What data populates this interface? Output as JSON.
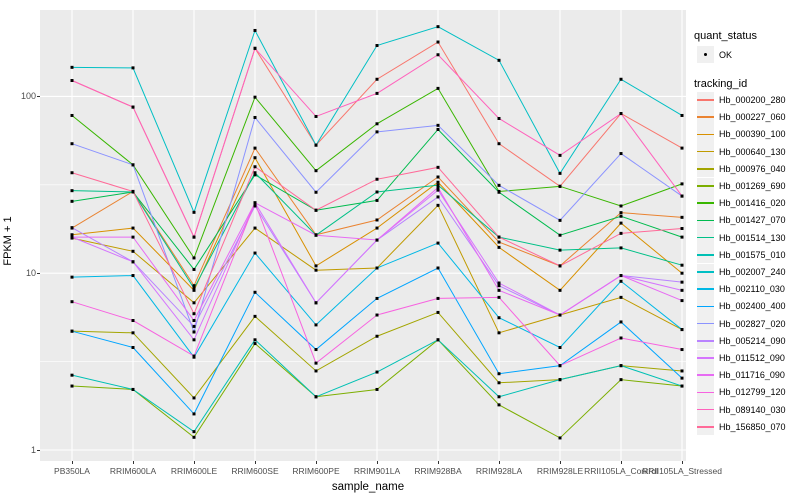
{
  "chart_data": {
    "type": "line",
    "xlabel": "sample_name",
    "ylabel": "FPKM + 1",
    "yscale": "log10",
    "ylim": [
      0.87,
      310
    ],
    "yticks": [
      {
        "value": 1,
        "label": "1"
      },
      {
        "value": 10,
        "label": "10"
      },
      {
        "value": 100,
        "label": "100"
      }
    ],
    "yminor": [
      3.1623,
      31.623
    ],
    "grid": true,
    "panel_bg": "#EBEBEB",
    "grid_color": "#FFFFFF",
    "point_color": "#000000",
    "legend_position": "right",
    "categories": [
      "PB350LA",
      "RRIM600LA",
      "RRIM600LE",
      "RRIM600SE",
      "RRIM600PE",
      "RRIM901LA",
      "RRIM928BA",
      "RRIM928LA",
      "RRIM928LE",
      "RRII105LA_Control",
      "RRII105LA_Stressed"
    ],
    "legend": {
      "quant_status_title": "quant_status",
      "quant_status_items": [
        {
          "label": "OK",
          "marker": "point"
        }
      ],
      "tracking_id_title": "tracking_id"
    },
    "series": [
      {
        "name": "Hb_000200_280",
        "color": "#F8766D",
        "values": [
          123,
          87,
          16,
          187,
          53,
          125,
          203,
          54,
          31,
          80,
          51
        ]
      },
      {
        "name": "Hb_000227_060",
        "color": "#EA8331",
        "values": [
          18,
          29,
          8.5,
          51,
          16.5,
          20,
          35,
          15,
          11,
          22,
          20.7
        ]
      },
      {
        "name": "Hb_000390_100",
        "color": "#D89000",
        "values": [
          16.5,
          18,
          8.0,
          45,
          11,
          18,
          32.7,
          14,
          8.0,
          19.2,
          10
        ]
      },
      {
        "name": "Hb_000640_130",
        "color": "#C09B00",
        "values": [
          15.8,
          13.3,
          6.8,
          18,
          10.4,
          10.7,
          24.2,
          4.6,
          5.8,
          7.3,
          4.8
        ]
      },
      {
        "name": "Hb_000976_040",
        "color": "#A3A500",
        "values": [
          4.7,
          4.6,
          1.97,
          5.7,
          2.8,
          4.4,
          6.0,
          2.4,
          2.5,
          3.0,
          2.8
        ]
      },
      {
        "name": "Hb_001269_690",
        "color": "#7CAE00",
        "values": [
          2.3,
          2.2,
          1.18,
          4.0,
          2.0,
          2.2,
          4.2,
          1.8,
          1.17,
          2.5,
          2.3
        ]
      },
      {
        "name": "Hb_001416_020",
        "color": "#39B600",
        "values": [
          78,
          41,
          12.2,
          99,
          38,
          70,
          111,
          29,
          31,
          24,
          32
        ]
      },
      {
        "name": "Hb_001427_070",
        "color": "#00BB4E",
        "values": [
          25.5,
          28.8,
          10.5,
          36,
          22.7,
          25.8,
          65,
          28.7,
          16.4,
          21,
          16
        ]
      },
      {
        "name": "Hb_001514_130",
        "color": "#00C087",
        "values": [
          29.3,
          28.8,
          8.2,
          37,
          16.4,
          28.8,
          31.5,
          16,
          13.5,
          13.9,
          11.1
        ]
      },
      {
        "name": "Hb_001575_010",
        "color": "#00C0B4",
        "values": [
          2.65,
          2.2,
          1.27,
          4.2,
          2.0,
          2.76,
          4.2,
          2.0,
          2.5,
          3.0,
          2.3
        ]
      },
      {
        "name": "Hb_002007_240",
        "color": "#00BFC4",
        "values": [
          146,
          145,
          22.1,
          236,
          53,
          194,
          248,
          160,
          36.7,
          125,
          78
        ]
      },
      {
        "name": "Hb_002110_030",
        "color": "#00B8E5",
        "values": [
          9.5,
          9.7,
          3.35,
          13,
          5.1,
          10.7,
          14.8,
          5.6,
          3.8,
          9.0,
          4.8
        ]
      },
      {
        "name": "Hb_002400_400",
        "color": "#00A5FF",
        "values": [
          4.7,
          3.8,
          1.6,
          7.8,
          3.7,
          7.2,
          10.7,
          2.7,
          3.0,
          5.3,
          2.55
        ]
      },
      {
        "name": "Hb_002827_020",
        "color": "#8B93FF",
        "values": [
          54,
          41,
          4.65,
          76,
          28.7,
          63,
          68.6,
          31.4,
          19.9,
          47.5,
          27.3
        ]
      },
      {
        "name": "Hb_005214_090",
        "color": "#B983FF",
        "values": [
          18.1,
          11.6,
          5.0,
          24,
          6.8,
          15.4,
          27,
          8.5,
          5.8,
          9.7,
          8.9
        ]
      },
      {
        "name": "Hb_011512_090",
        "color": "#D575FE",
        "values": [
          16,
          11.6,
          4.2,
          25,
          6.8,
          15.4,
          29.5,
          8.8,
          5.8,
          9.7,
          8.0
        ]
      },
      {
        "name": "Hb_011716_090",
        "color": "#E76BF3",
        "values": [
          16,
          16,
          5.4,
          25,
          16.4,
          15.4,
          30.5,
          8.0,
          5.8,
          9.7,
          7.0
        ]
      },
      {
        "name": "Hb_012799_120",
        "color": "#F763E0",
        "values": [
          6.9,
          5.4,
          3.4,
          25,
          3.1,
          5.8,
          7.2,
          7.3,
          3.0,
          4.3,
          3.7
        ]
      },
      {
        "name": "Hb_089140_030",
        "color": "#FF62BC",
        "values": [
          123,
          87,
          16,
          187,
          77,
          104,
          172,
          75,
          46.4,
          80,
          27.3
        ]
      },
      {
        "name": "Hb_156850_070",
        "color": "#FF6A98",
        "values": [
          37,
          29,
          5.9,
          40,
          22.7,
          34,
          39.7,
          16,
          11,
          16.8,
          17.9
        ]
      }
    ]
  }
}
